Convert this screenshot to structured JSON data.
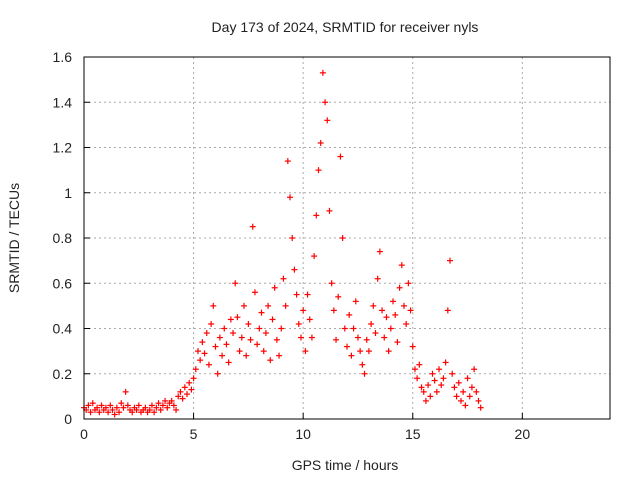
{
  "chart_data": {
    "type": "scatter",
    "title": "Day 173 of 2024, SRMTID for receiver nyls",
    "xlabel": "GPS time / hours",
    "ylabel": "SRMTID / TECUs",
    "xlim": [
      0,
      24
    ],
    "ylim": [
      0,
      1.6
    ],
    "xticks": [
      0,
      5,
      10,
      15,
      20
    ],
    "yticks": [
      0,
      0.2,
      0.4,
      0.6,
      0.8,
      1,
      1.2,
      1.4,
      1.6
    ],
    "xtick_labels": [
      "0",
      "5",
      "10",
      "15",
      "20"
    ],
    "ytick_labels": [
      "0",
      "0.2",
      "0.4",
      "0.6",
      "0.8",
      "1",
      "1.2",
      "1.4",
      "1.6"
    ],
    "grid": true,
    "marker": "+",
    "color": "#ff0000",
    "series": [
      {
        "name": "SRMTID",
        "points": [
          [
            0.0,
            0.05
          ],
          [
            0.1,
            0.04
          ],
          [
            0.2,
            0.06
          ],
          [
            0.3,
            0.03
          ],
          [
            0.4,
            0.07
          ],
          [
            0.5,
            0.04
          ],
          [
            0.6,
            0.05
          ],
          [
            0.7,
            0.03
          ],
          [
            0.8,
            0.06
          ],
          [
            0.9,
            0.04
          ],
          [
            1.0,
            0.05
          ],
          [
            1.1,
            0.03
          ],
          [
            1.2,
            0.06
          ],
          [
            1.3,
            0.04
          ],
          [
            1.4,
            0.02
          ],
          [
            1.5,
            0.05
          ],
          [
            1.6,
            0.03
          ],
          [
            1.7,
            0.07
          ],
          [
            1.8,
            0.05
          ],
          [
            1.9,
            0.12
          ],
          [
            2.0,
            0.06
          ],
          [
            2.1,
            0.04
          ],
          [
            2.2,
            0.03
          ],
          [
            2.3,
            0.05
          ],
          [
            2.4,
            0.04
          ],
          [
            2.5,
            0.06
          ],
          [
            2.6,
            0.03
          ],
          [
            2.7,
            0.04
          ],
          [
            2.8,
            0.05
          ],
          [
            2.9,
            0.03
          ],
          [
            3.0,
            0.04
          ],
          [
            3.1,
            0.06
          ],
          [
            3.2,
            0.03
          ],
          [
            3.3,
            0.05
          ],
          [
            3.4,
            0.07
          ],
          [
            3.5,
            0.04
          ],
          [
            3.6,
            0.06
          ],
          [
            3.7,
            0.08
          ],
          [
            3.8,
            0.05
          ],
          [
            3.9,
            0.07
          ],
          [
            4.0,
            0.08
          ],
          [
            4.1,
            0.06
          ],
          [
            4.2,
            0.04
          ],
          [
            4.3,
            0.1
          ],
          [
            4.4,
            0.12
          ],
          [
            4.5,
            0.09
          ],
          [
            4.6,
            0.14
          ],
          [
            4.7,
            0.11
          ],
          [
            4.8,
            0.16
          ],
          [
            4.9,
            0.13
          ],
          [
            5.0,
            0.18
          ],
          [
            5.1,
            0.22
          ],
          [
            5.2,
            0.3
          ],
          [
            5.3,
            0.26
          ],
          [
            5.4,
            0.34
          ],
          [
            5.5,
            0.29
          ],
          [
            5.6,
            0.38
          ],
          [
            5.7,
            0.24
          ],
          [
            5.8,
            0.42
          ],
          [
            5.9,
            0.5
          ],
          [
            6.0,
            0.32
          ],
          [
            6.1,
            0.2
          ],
          [
            6.2,
            0.36
          ],
          [
            6.3,
            0.28
          ],
          [
            6.4,
            0.4
          ],
          [
            6.5,
            0.33
          ],
          [
            6.6,
            0.25
          ],
          [
            6.7,
            0.44
          ],
          [
            6.8,
            0.38
          ],
          [
            6.9,
            0.6
          ],
          [
            7.0,
            0.45
          ],
          [
            7.1,
            0.3
          ],
          [
            7.2,
            0.36
          ],
          [
            7.3,
            0.5
          ],
          [
            7.4,
            0.28
          ],
          [
            7.5,
            0.42
          ],
          [
            7.6,
            0.35
          ],
          [
            7.7,
            0.85
          ],
          [
            7.8,
            0.56
          ],
          [
            7.9,
            0.33
          ],
          [
            8.0,
            0.4
          ],
          [
            8.1,
            0.47
          ],
          [
            8.2,
            0.3
          ],
          [
            8.3,
            0.38
          ],
          [
            8.4,
            0.5
          ],
          [
            8.5,
            0.26
          ],
          [
            8.6,
            0.44
          ],
          [
            8.7,
            0.58
          ],
          [
            8.8,
            0.35
          ],
          [
            8.9,
            0.28
          ],
          [
            9.0,
            0.4
          ],
          [
            9.1,
            0.62
          ],
          [
            9.2,
            0.5
          ],
          [
            9.3,
            1.14
          ],
          [
            9.4,
            0.98
          ],
          [
            9.5,
            0.8
          ],
          [
            9.6,
            0.66
          ],
          [
            9.7,
            0.55
          ],
          [
            9.8,
            0.42
          ],
          [
            9.9,
            0.36
          ],
          [
            10.0,
            0.48
          ],
          [
            10.1,
            0.3
          ],
          [
            10.2,
            0.55
          ],
          [
            10.3,
            0.44
          ],
          [
            10.4,
            0.36
          ],
          [
            10.5,
            0.72
          ],
          [
            10.6,
            0.9
          ],
          [
            10.7,
            1.1
          ],
          [
            10.8,
            1.22
          ],
          [
            10.9,
            1.53
          ],
          [
            11.0,
            1.4
          ],
          [
            11.1,
            1.32
          ],
          [
            11.2,
            0.92
          ],
          [
            11.3,
            0.6
          ],
          [
            11.4,
            0.48
          ],
          [
            11.5,
            0.35
          ],
          [
            11.6,
            0.54
          ],
          [
            11.7,
            1.16
          ],
          [
            11.8,
            0.8
          ],
          [
            11.9,
            0.4
          ],
          [
            12.0,
            0.32
          ],
          [
            12.1,
            0.46
          ],
          [
            12.2,
            0.28
          ],
          [
            12.3,
            0.4
          ],
          [
            12.4,
            0.52
          ],
          [
            12.5,
            0.36
          ],
          [
            12.6,
            0.3
          ],
          [
            12.7,
            0.24
          ],
          [
            12.8,
            0.2
          ],
          [
            12.9,
            0.35
          ],
          [
            13.0,
            0.3
          ],
          [
            13.1,
            0.42
          ],
          [
            13.2,
            0.5
          ],
          [
            13.3,
            0.38
          ],
          [
            13.4,
            0.62
          ],
          [
            13.5,
            0.74
          ],
          [
            13.6,
            0.48
          ],
          [
            13.7,
            0.36
          ],
          [
            13.8,
            0.45
          ],
          [
            13.9,
            0.3
          ],
          [
            14.0,
            0.4
          ],
          [
            14.1,
            0.52
          ],
          [
            14.2,
            0.46
          ],
          [
            14.3,
            0.34
          ],
          [
            14.4,
            0.58
          ],
          [
            14.5,
            0.68
          ],
          [
            14.6,
            0.5
          ],
          [
            14.7,
            0.42
          ],
          [
            14.8,
            0.6
          ],
          [
            14.9,
            0.48
          ],
          [
            15.0,
            0.32
          ],
          [
            15.1,
            0.22
          ],
          [
            15.2,
            0.18
          ],
          [
            15.3,
            0.24
          ],
          [
            15.4,
            0.14
          ],
          [
            15.5,
            0.12
          ],
          [
            15.6,
            0.08
          ],
          [
            15.7,
            0.15
          ],
          [
            15.8,
            0.1
          ],
          [
            15.9,
            0.2
          ],
          [
            16.0,
            0.17
          ],
          [
            16.1,
            0.12
          ],
          [
            16.2,
            0.22
          ],
          [
            16.3,
            0.15
          ],
          [
            16.4,
            0.18
          ],
          [
            16.5,
            0.25
          ],
          [
            16.6,
            0.48
          ],
          [
            16.7,
            0.7
          ],
          [
            16.8,
            0.2
          ],
          [
            16.9,
            0.14
          ],
          [
            17.0,
            0.1
          ],
          [
            17.1,
            0.16
          ],
          [
            17.2,
            0.08
          ],
          [
            17.3,
            0.12
          ],
          [
            17.4,
            0.06
          ],
          [
            17.5,
            0.18
          ],
          [
            17.6,
            0.1
          ],
          [
            17.7,
            0.14
          ],
          [
            17.8,
            0.22
          ],
          [
            17.9,
            0.12
          ],
          [
            18.0,
            0.08
          ],
          [
            18.1,
            0.05
          ]
        ]
      }
    ]
  }
}
